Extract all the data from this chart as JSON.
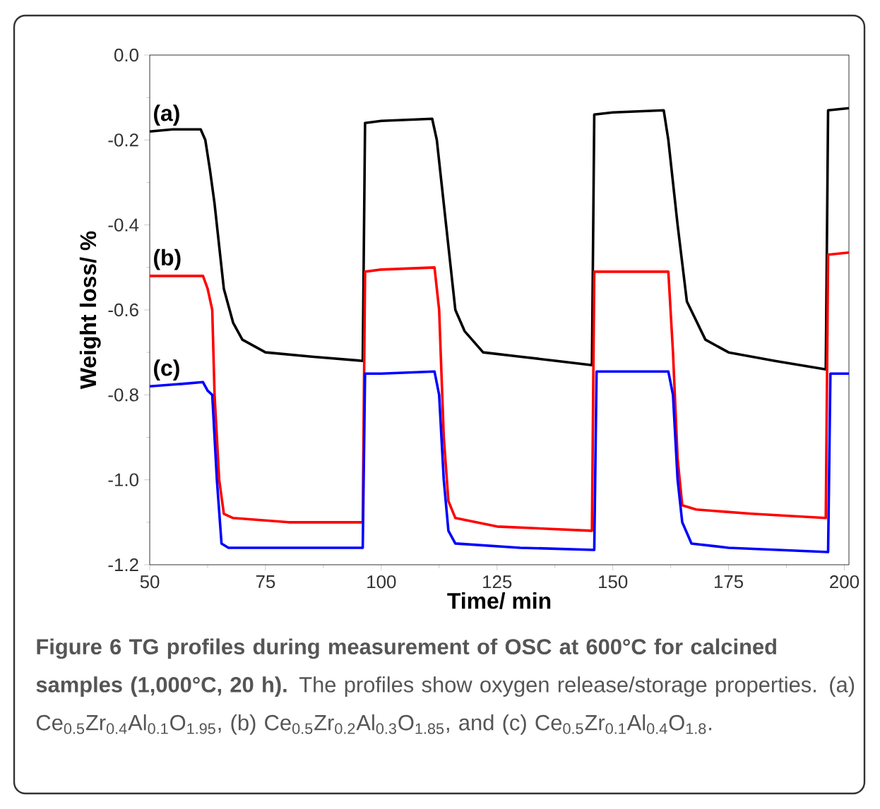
{
  "chart_data": {
    "type": "line",
    "xlabel": "Time/ min",
    "ylabel": "Weight loss/ %",
    "xlim": [
      50,
      201
    ],
    "ylim": [
      -1.2,
      0
    ],
    "xticks": [
      50,
      75,
      100,
      125,
      150,
      175,
      200
    ],
    "yticks": [
      {
        "value": 0,
        "label": "0.0"
      },
      {
        "value": -0.2,
        "label": "-0.2"
      },
      {
        "value": -0.4,
        "label": "-0.4"
      },
      {
        "value": -0.6,
        "label": "-0.6"
      },
      {
        "value": -0.8,
        "label": "-0.8"
      },
      {
        "value": -1.0,
        "label": "-1.0"
      },
      {
        "value": -1.2,
        "label": "-1.2"
      }
    ],
    "grid": false,
    "legend": false,
    "marker": "none",
    "line_style": "solid",
    "series": [
      {
        "name": "(a)",
        "color": "#000000",
        "x": [
          50,
          55,
          61,
          62,
          63,
          64,
          65,
          66,
          68,
          70,
          75,
          85,
          96,
          96.5,
          100,
          111,
          112,
          113,
          114,
          116,
          118,
          122,
          130,
          145.5,
          146,
          150,
          161,
          162,
          163,
          164,
          166,
          170,
          175,
          185,
          196,
          196.5,
          201
        ],
        "values": [
          -0.18,
          -0.175,
          -0.175,
          -0.2,
          -0.27,
          -0.35,
          -0.45,
          -0.55,
          -0.63,
          -0.67,
          -0.7,
          -0.71,
          -0.72,
          -0.16,
          -0.155,
          -0.15,
          -0.2,
          -0.3,
          -0.4,
          -0.6,
          -0.65,
          -0.7,
          -0.71,
          -0.73,
          -0.14,
          -0.135,
          -0.13,
          -0.2,
          -0.3,
          -0.4,
          -0.58,
          -0.67,
          -0.7,
          -0.72,
          -0.74,
          -0.13,
          -0.125
        ]
      },
      {
        "name": "(b)",
        "color": "#ff0000",
        "x": [
          50,
          56,
          61.5,
          62.5,
          63.5,
          64,
          65,
          66,
          68,
          80,
          96,
          96.5,
          100,
          111.5,
          112.5,
          113.5,
          114.5,
          116,
          125,
          145.5,
          146,
          150,
          162,
          163,
          164,
          165,
          168,
          180,
          196,
          196.5,
          201
        ],
        "values": [
          -0.52,
          -0.52,
          -0.52,
          -0.55,
          -0.6,
          -0.8,
          -1.0,
          -1.08,
          -1.09,
          -1.1,
          -1.1,
          -0.51,
          -0.505,
          -0.5,
          -0.6,
          -0.9,
          -1.05,
          -1.09,
          -1.11,
          -1.12,
          -0.51,
          -0.51,
          -0.51,
          -0.7,
          -0.95,
          -1.06,
          -1.07,
          -1.08,
          -1.09,
          -0.47,
          -0.465
        ]
      },
      {
        "name": "(c)",
        "color": "#0000ff",
        "x": [
          50,
          56,
          61.5,
          62.5,
          63.5,
          64.5,
          65.5,
          67,
          80,
          96,
          96.5,
          100,
          111.5,
          112.5,
          113.5,
          114.5,
          116,
          130,
          146,
          146.5,
          150,
          162,
          163,
          164,
          165,
          167,
          175,
          196.5,
          197,
          201
        ],
        "values": [
          -0.78,
          -0.775,
          -0.77,
          -0.79,
          -0.8,
          -1.0,
          -1.15,
          -1.16,
          -1.16,
          -1.16,
          -0.75,
          -0.75,
          -0.745,
          -0.8,
          -1.0,
          -1.12,
          -1.15,
          -1.16,
          -1.165,
          -0.745,
          -0.745,
          -0.745,
          -0.8,
          -1.0,
          -1.1,
          -1.15,
          -1.16,
          -1.17,
          -0.75,
          -0.75
        ]
      }
    ],
    "annotations": [
      "**Figure 6 TG profiles during measurement of OSC at 600°C for calcined samples (1,000°C, 20 h).** The profiles show oxygen release/storage properties. (a) Ce$_{0.5}$Zr$_{0.4}$Al$_{0.1}$O$_{1.95}$, (b) Ce$_{0.5}$Zr$_{0.2}$Al$_{0.3}$O$_{1.85}$, and (c) Ce$_{0.5}$Zr$_{0.1}$Al$_{0.4}$O$_{1.8}$."
    ]
  }
}
